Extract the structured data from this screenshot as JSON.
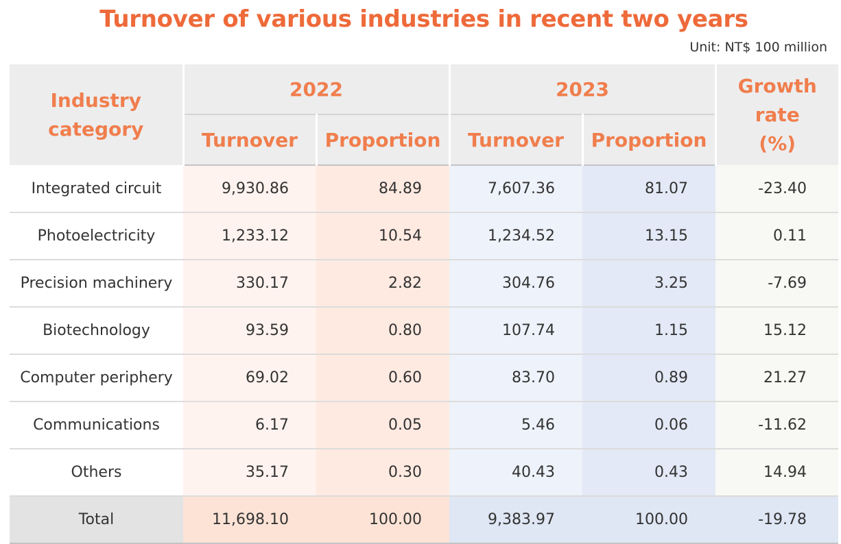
{
  "chart_data": {
    "type": "table",
    "title": "Turnover of various industries in recent two years",
    "unit": "Unit: NT$ 100 million",
    "headers": {
      "category": "Industry category",
      "year1": "2022",
      "year2": "2023",
      "growth": "Growth rate (%)",
      "turnover": "Turnover",
      "proportion": "Proportion"
    },
    "rows": [
      {
        "category": "Integrated circuit",
        "t2022": "9,930.86",
        "p2022": "84.89",
        "t2023": "7,607.36",
        "p2023": "81.07",
        "growth": "-23.40"
      },
      {
        "category": "Photoelectricity",
        "t2022": "1,233.12",
        "p2022": "10.54",
        "t2023": "1,234.52",
        "p2023": "13.15",
        "growth": "0.11"
      },
      {
        "category": "Precision machinery",
        "t2022": "330.17",
        "p2022": "2.82",
        "t2023": "304.76",
        "p2023": "3.25",
        "growth": "-7.69"
      },
      {
        "category": "Biotechnology",
        "t2022": "93.59",
        "p2022": "0.80",
        "t2023": "107.74",
        "p2023": "1.15",
        "growth": "15.12"
      },
      {
        "category": "Computer periphery",
        "t2022": "69.02",
        "p2022": "0.60",
        "t2023": "83.70",
        "p2023": "0.89",
        "growth": "21.27"
      },
      {
        "category": "Communications",
        "t2022": "6.17",
        "p2022": "0.05",
        "t2023": "5.46",
        "p2023": "0.06",
        "growth": "-11.62"
      },
      {
        "category": "Others",
        "t2022": "35.17",
        "p2022": "0.30",
        "t2023": "40.43",
        "p2023": "0.43",
        "growth": "14.94"
      }
    ],
    "total": {
      "category": "Total",
      "t2022": "11,698.10",
      "p2022": "100.00",
      "t2023": "9,383.97",
      "p2023": "100.00",
      "growth": "-19.78"
    },
    "colors": {
      "title": "#ee6a3a",
      "header_text": "#f07e4d",
      "header_bg": "#ededee",
      "col2022": "#feeae1",
      "col2023": "#e3e9f6"
    }
  }
}
